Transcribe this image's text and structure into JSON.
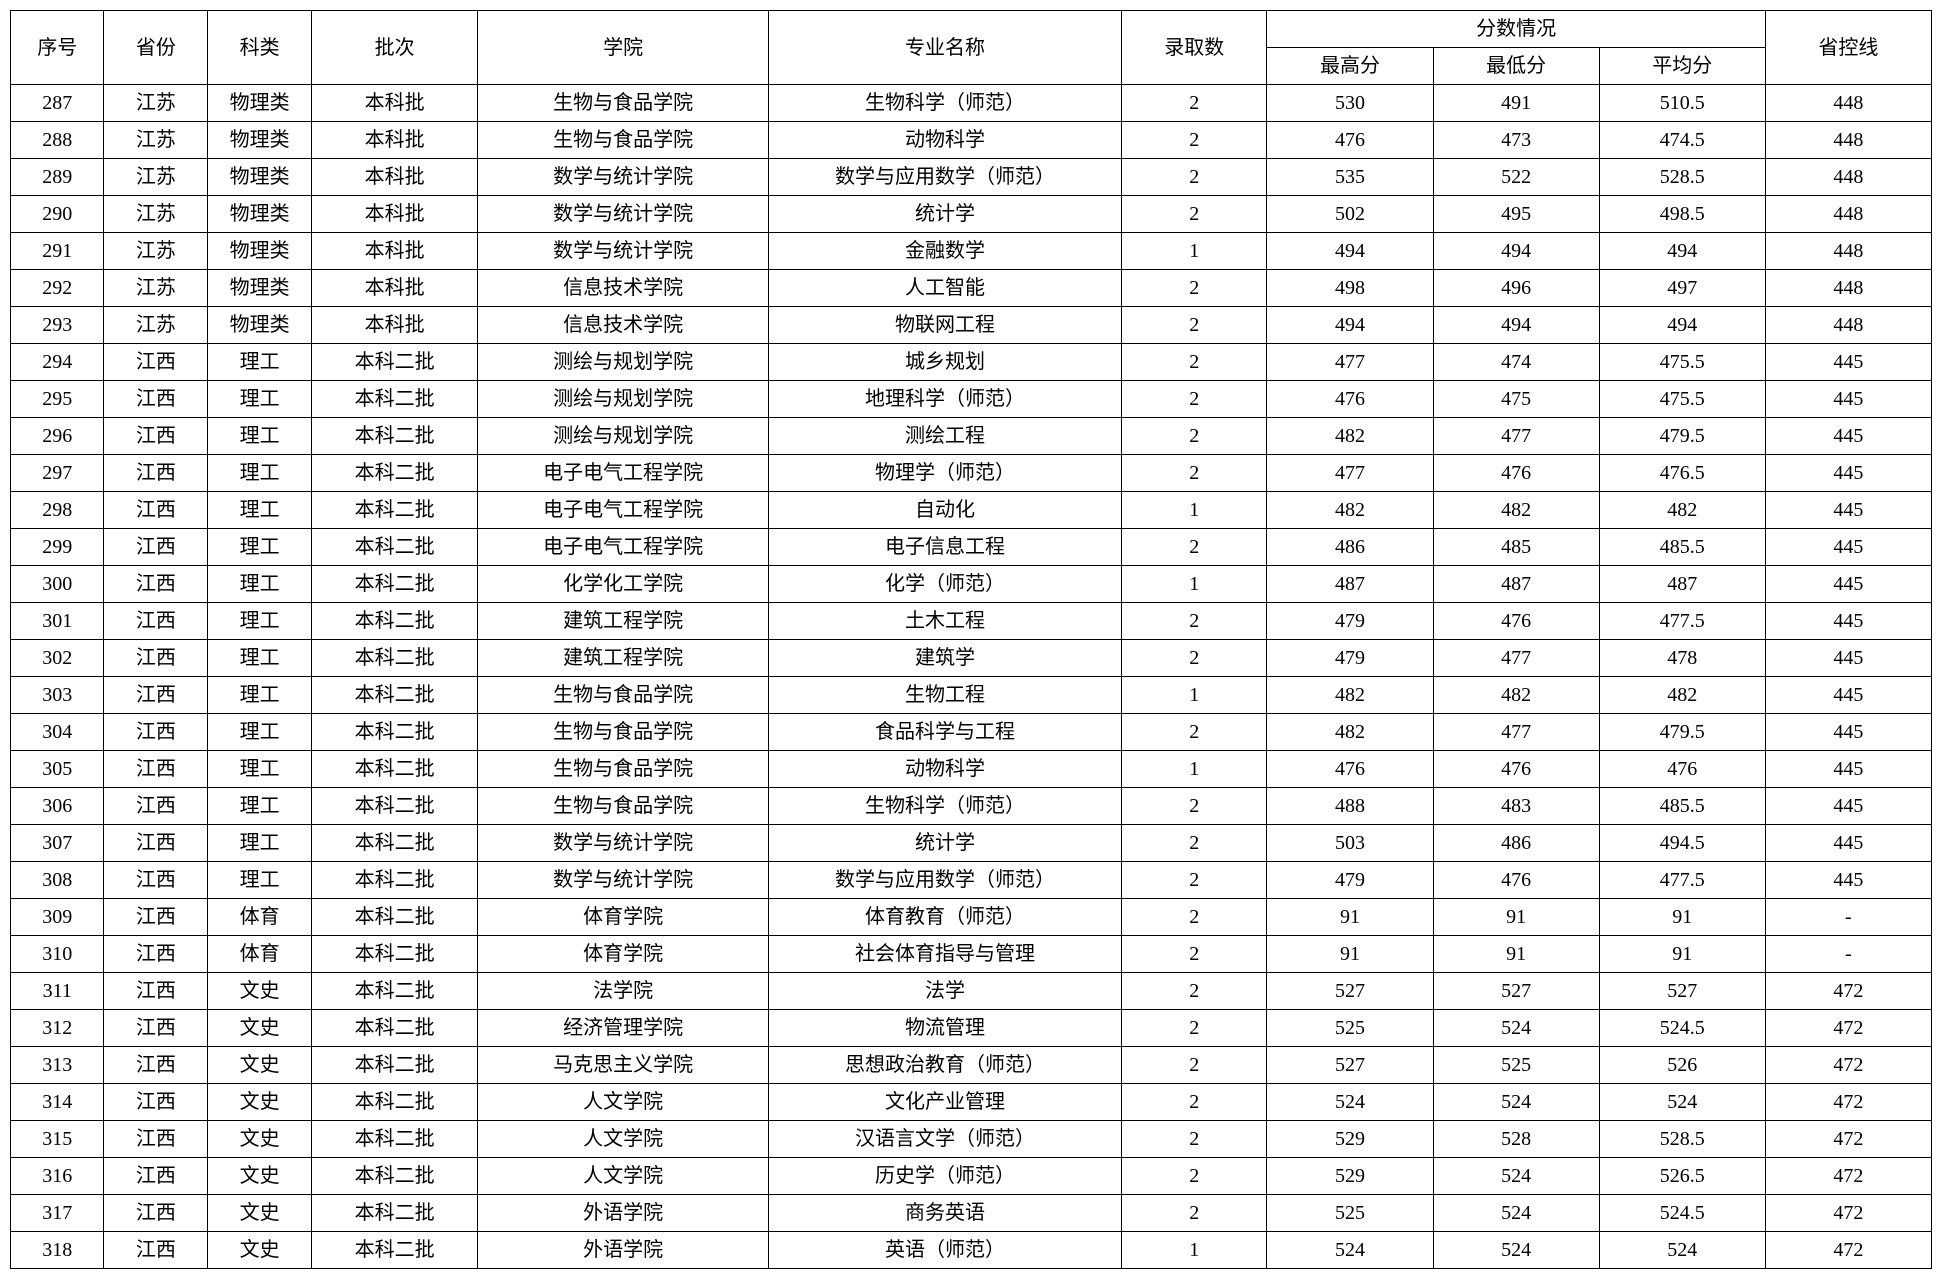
{
  "table": {
    "headers": {
      "seq": "序号",
      "province": "省份",
      "subject": "科类",
      "batch": "批次",
      "college": "学院",
      "major": "专业名称",
      "admit": "录取数",
      "score_group": "分数情况",
      "score_high": "最高分",
      "score_low": "最低分",
      "score_avg": "平均分",
      "prov_line": "省控线"
    },
    "rows": [
      {
        "seq": "287",
        "province": "江苏",
        "subject": "物理类",
        "batch": "本科批",
        "college": "生物与食品学院",
        "major": "生物科学（师范）",
        "admit": "2",
        "high": "530",
        "low": "491",
        "avg": "510.5",
        "line": "448"
      },
      {
        "seq": "288",
        "province": "江苏",
        "subject": "物理类",
        "batch": "本科批",
        "college": "生物与食品学院",
        "major": "动物科学",
        "admit": "2",
        "high": "476",
        "low": "473",
        "avg": "474.5",
        "line": "448"
      },
      {
        "seq": "289",
        "province": "江苏",
        "subject": "物理类",
        "batch": "本科批",
        "college": "数学与统计学院",
        "major": "数学与应用数学（师范）",
        "admit": "2",
        "high": "535",
        "low": "522",
        "avg": "528.5",
        "line": "448"
      },
      {
        "seq": "290",
        "province": "江苏",
        "subject": "物理类",
        "batch": "本科批",
        "college": "数学与统计学院",
        "major": "统计学",
        "admit": "2",
        "high": "502",
        "low": "495",
        "avg": "498.5",
        "line": "448"
      },
      {
        "seq": "291",
        "province": "江苏",
        "subject": "物理类",
        "batch": "本科批",
        "college": "数学与统计学院",
        "major": "金融数学",
        "admit": "1",
        "high": "494",
        "low": "494",
        "avg": "494",
        "line": "448"
      },
      {
        "seq": "292",
        "province": "江苏",
        "subject": "物理类",
        "batch": "本科批",
        "college": "信息技术学院",
        "major": "人工智能",
        "admit": "2",
        "high": "498",
        "low": "496",
        "avg": "497",
        "line": "448"
      },
      {
        "seq": "293",
        "province": "江苏",
        "subject": "物理类",
        "batch": "本科批",
        "college": "信息技术学院",
        "major": "物联网工程",
        "admit": "2",
        "high": "494",
        "low": "494",
        "avg": "494",
        "line": "448"
      },
      {
        "seq": "294",
        "province": "江西",
        "subject": "理工",
        "batch": "本科二批",
        "college": "测绘与规划学院",
        "major": "城乡规划",
        "admit": "2",
        "high": "477",
        "low": "474",
        "avg": "475.5",
        "line": "445"
      },
      {
        "seq": "295",
        "province": "江西",
        "subject": "理工",
        "batch": "本科二批",
        "college": "测绘与规划学院",
        "major": "地理科学（师范）",
        "admit": "2",
        "high": "476",
        "low": "475",
        "avg": "475.5",
        "line": "445"
      },
      {
        "seq": "296",
        "province": "江西",
        "subject": "理工",
        "batch": "本科二批",
        "college": "测绘与规划学院",
        "major": "测绘工程",
        "admit": "2",
        "high": "482",
        "low": "477",
        "avg": "479.5",
        "line": "445"
      },
      {
        "seq": "297",
        "province": "江西",
        "subject": "理工",
        "batch": "本科二批",
        "college": "电子电气工程学院",
        "major": "物理学（师范）",
        "admit": "2",
        "high": "477",
        "low": "476",
        "avg": "476.5",
        "line": "445"
      },
      {
        "seq": "298",
        "province": "江西",
        "subject": "理工",
        "batch": "本科二批",
        "college": "电子电气工程学院",
        "major": "自动化",
        "admit": "1",
        "high": "482",
        "low": "482",
        "avg": "482",
        "line": "445"
      },
      {
        "seq": "299",
        "province": "江西",
        "subject": "理工",
        "batch": "本科二批",
        "college": "电子电气工程学院",
        "major": "电子信息工程",
        "admit": "2",
        "high": "486",
        "low": "485",
        "avg": "485.5",
        "line": "445"
      },
      {
        "seq": "300",
        "province": "江西",
        "subject": "理工",
        "batch": "本科二批",
        "college": "化学化工学院",
        "major": "化学（师范）",
        "admit": "1",
        "high": "487",
        "low": "487",
        "avg": "487",
        "line": "445"
      },
      {
        "seq": "301",
        "province": "江西",
        "subject": "理工",
        "batch": "本科二批",
        "college": "建筑工程学院",
        "major": "土木工程",
        "admit": "2",
        "high": "479",
        "low": "476",
        "avg": "477.5",
        "line": "445"
      },
      {
        "seq": "302",
        "province": "江西",
        "subject": "理工",
        "batch": "本科二批",
        "college": "建筑工程学院",
        "major": "建筑学",
        "admit": "2",
        "high": "479",
        "low": "477",
        "avg": "478",
        "line": "445"
      },
      {
        "seq": "303",
        "province": "江西",
        "subject": "理工",
        "batch": "本科二批",
        "college": "生物与食品学院",
        "major": "生物工程",
        "admit": "1",
        "high": "482",
        "low": "482",
        "avg": "482",
        "line": "445"
      },
      {
        "seq": "304",
        "province": "江西",
        "subject": "理工",
        "batch": "本科二批",
        "college": "生物与食品学院",
        "major": "食品科学与工程",
        "admit": "2",
        "high": "482",
        "low": "477",
        "avg": "479.5",
        "line": "445"
      },
      {
        "seq": "305",
        "province": "江西",
        "subject": "理工",
        "batch": "本科二批",
        "college": "生物与食品学院",
        "major": "动物科学",
        "admit": "1",
        "high": "476",
        "low": "476",
        "avg": "476",
        "line": "445"
      },
      {
        "seq": "306",
        "province": "江西",
        "subject": "理工",
        "batch": "本科二批",
        "college": "生物与食品学院",
        "major": "生物科学（师范）",
        "admit": "2",
        "high": "488",
        "low": "483",
        "avg": "485.5",
        "line": "445"
      },
      {
        "seq": "307",
        "province": "江西",
        "subject": "理工",
        "batch": "本科二批",
        "college": "数学与统计学院",
        "major": "统计学",
        "admit": "2",
        "high": "503",
        "low": "486",
        "avg": "494.5",
        "line": "445"
      },
      {
        "seq": "308",
        "province": "江西",
        "subject": "理工",
        "batch": "本科二批",
        "college": "数学与统计学院",
        "major": "数学与应用数学（师范）",
        "admit": "2",
        "high": "479",
        "low": "476",
        "avg": "477.5",
        "line": "445"
      },
      {
        "seq": "309",
        "province": "江西",
        "subject": "体育",
        "batch": "本科二批",
        "college": "体育学院",
        "major": "体育教育（师范）",
        "admit": "2",
        "high": "91",
        "low": "91",
        "avg": "91",
        "line": "-"
      },
      {
        "seq": "310",
        "province": "江西",
        "subject": "体育",
        "batch": "本科二批",
        "college": "体育学院",
        "major": "社会体育指导与管理",
        "admit": "2",
        "high": "91",
        "low": "91",
        "avg": "91",
        "line": "-"
      },
      {
        "seq": "311",
        "province": "江西",
        "subject": "文史",
        "batch": "本科二批",
        "college": "法学院",
        "major": "法学",
        "admit": "2",
        "high": "527",
        "low": "527",
        "avg": "527",
        "line": "472"
      },
      {
        "seq": "312",
        "province": "江西",
        "subject": "文史",
        "batch": "本科二批",
        "college": "经济管理学院",
        "major": "物流管理",
        "admit": "2",
        "high": "525",
        "low": "524",
        "avg": "524.5",
        "line": "472"
      },
      {
        "seq": "313",
        "province": "江西",
        "subject": "文史",
        "batch": "本科二批",
        "college": "马克思主义学院",
        "major": "思想政治教育（师范）",
        "admit": "2",
        "high": "527",
        "low": "525",
        "avg": "526",
        "line": "472"
      },
      {
        "seq": "314",
        "province": "江西",
        "subject": "文史",
        "batch": "本科二批",
        "college": "人文学院",
        "major": "文化产业管理",
        "admit": "2",
        "high": "524",
        "low": "524",
        "avg": "524",
        "line": "472"
      },
      {
        "seq": "315",
        "province": "江西",
        "subject": "文史",
        "batch": "本科二批",
        "college": "人文学院",
        "major": "汉语言文学（师范）",
        "admit": "2",
        "high": "529",
        "low": "528",
        "avg": "528.5",
        "line": "472"
      },
      {
        "seq": "316",
        "province": "江西",
        "subject": "文史",
        "batch": "本科二批",
        "college": "人文学院",
        "major": "历史学（师范）",
        "admit": "2",
        "high": "529",
        "low": "524",
        "avg": "526.5",
        "line": "472"
      },
      {
        "seq": "317",
        "province": "江西",
        "subject": "文史",
        "batch": "本科二批",
        "college": "外语学院",
        "major": "商务英语",
        "admit": "2",
        "high": "525",
        "low": "524",
        "avg": "524.5",
        "line": "472"
      },
      {
        "seq": "318",
        "province": "江西",
        "subject": "文史",
        "batch": "本科二批",
        "college": "外语学院",
        "major": "英语（师范）",
        "admit": "1",
        "high": "524",
        "low": "524",
        "avg": "524",
        "line": "472"
      }
    ]
  }
}
